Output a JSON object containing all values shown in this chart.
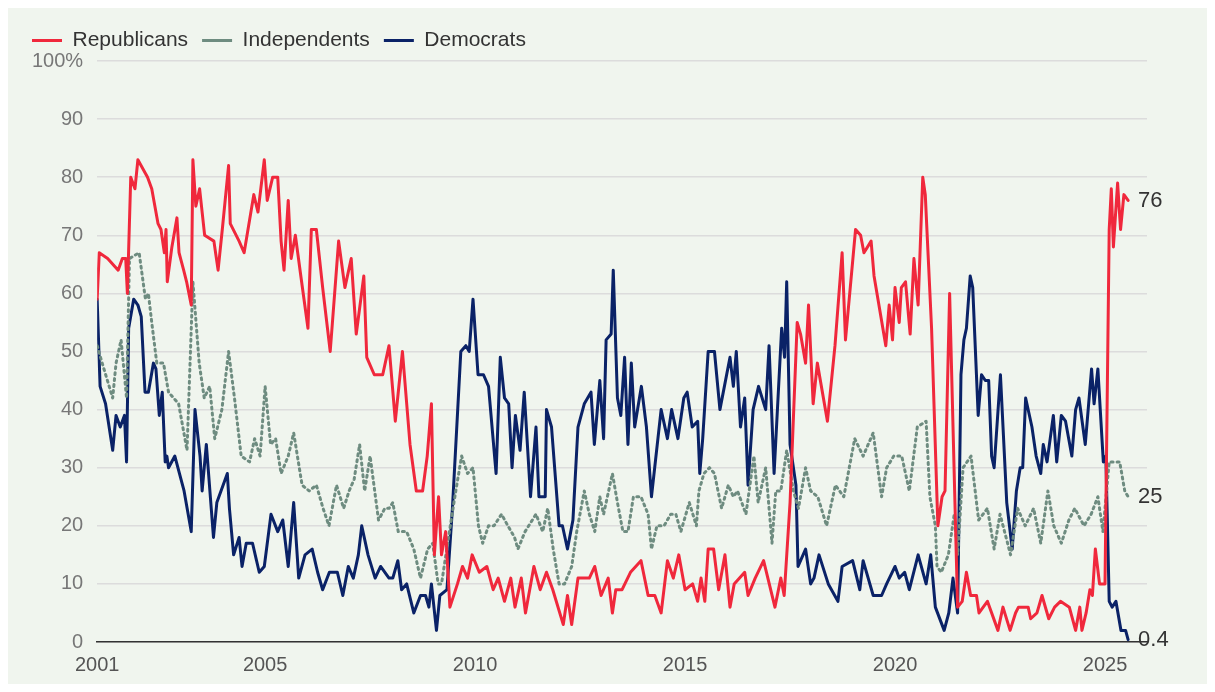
{
  "chart_data": {
    "type": "line",
    "legend": "top left",
    "grid": "y",
    "marker": "none",
    "xlim": [
      2001,
      2026
    ],
    "xticks": [
      2001,
      2005,
      2010,
      2015,
      2020,
      2025
    ],
    "ylim": [
      0,
      100
    ],
    "yticks": [
      0,
      10,
      20,
      30,
      40,
      50,
      60,
      70,
      80,
      90,
      {
        "value": 100,
        "label": "100%"
      }
    ],
    "series": [
      {
        "name": "Republicans",
        "color": "#f0283c",
        "line_style": "solid",
        "x": [
          2001.0,
          2001.05,
          2001.25,
          2001.5,
          2001.6,
          2001.68,
          2001.72,
          2001.8,
          2001.9,
          2001.97,
          2002.2,
          2002.3,
          2002.45,
          2002.52,
          2002.6,
          2002.64,
          2002.67,
          2002.78,
          2002.9,
          2002.95,
          2003.06,
          2003.13,
          2003.24,
          2003.28,
          2003.35,
          2003.44,
          2003.56,
          2003.78,
          2003.88,
          2003.98,
          2004.13,
          2004.17,
          2004.38,
          2004.5,
          2004.73,
          2004.83,
          2004.98,
          2005.05,
          2005.18,
          2005.3,
          2005.38,
          2005.45,
          2005.55,
          2005.62,
          2005.72,
          2005.85,
          2006.02,
          2006.1,
          2006.22,
          2006.37,
          2006.55,
          2006.75,
          2006.9,
          2007.05,
          2007.17,
          2007.35,
          2007.42,
          2007.6,
          2007.8,
          2007.95,
          2008.1,
          2008.27,
          2008.45,
          2008.6,
          2008.75,
          2008.86,
          2008.96,
          2009.03,
          2009.13,
          2009.2,
          2009.3,
          2009.4,
          2009.58,
          2009.7,
          2009.82,
          2009.93,
          2010.1,
          2010.28,
          2010.43,
          2010.55,
          2010.7,
          2010.85,
          2010.95,
          2011.1,
          2011.2,
          2011.4,
          2011.55,
          2011.7,
          2011.85,
          2012.1,
          2012.2,
          2012.3,
          2012.45,
          2012.72,
          2012.85,
          2013.0,
          2013.17,
          2013.27,
          2013.35,
          2013.5,
          2013.7,
          2013.95,
          2014.12,
          2014.28,
          2014.43,
          2014.58,
          2014.72,
          2014.85,
          2015.0,
          2015.18,
          2015.3,
          2015.38,
          2015.47,
          2015.55,
          2015.68,
          2015.8,
          2015.95,
          2016.07,
          2016.17,
          2016.42,
          2016.5,
          2016.67,
          2016.87,
          2017.14,
          2017.28,
          2017.36,
          2017.5,
          2017.67,
          2017.75,
          2017.87,
          2017.94,
          2018.05,
          2018.15,
          2018.39,
          2018.57,
          2018.74,
          2018.82,
          2019.06,
          2019.18,
          2019.26,
          2019.43,
          2019.5,
          2019.78,
          2019.86,
          2019.94,
          2020.0,
          2020.1,
          2020.15,
          2020.25,
          2020.36,
          2020.45,
          2020.55,
          2020.66,
          2020.72,
          2020.87,
          2021.02,
          2021.12,
          2021.19,
          2021.3,
          2021.49,
          2021.6,
          2021.7,
          2021.8,
          2021.94,
          2022.0,
          2022.2,
          2022.45,
          2022.57,
          2022.74,
          2022.87,
          2022.94,
          2022.98,
          2023.17,
          2023.23,
          2023.38,
          2023.5,
          2023.66,
          2023.8,
          2023.94,
          2024.15,
          2024.3,
          2024.4,
          2024.45,
          2024.55,
          2024.64,
          2024.7,
          2024.77,
          2024.87,
          2025.0,
          2025.1,
          2025.15,
          2025.2,
          2025.3,
          2025.37,
          2025.45,
          2025.55
        ],
        "values": [
          59,
          67,
          66,
          64,
          66,
          66,
          60,
          80,
          78,
          83,
          80,
          78,
          72,
          71,
          67,
          71,
          62,
          68,
          73,
          67,
          64,
          62,
          58,
          83,
          75,
          78,
          70,
          69,
          64,
          71,
          82,
          72,
          69,
          67,
          77,
          74,
          83,
          76,
          80,
          80,
          69,
          64,
          76,
          66,
          70,
          63,
          54,
          71,
          71,
          61,
          50,
          69,
          61,
          66,
          53,
          63,
          49,
          46,
          46,
          51,
          38,
          50,
          34,
          26,
          26,
          32,
          41,
          15,
          25,
          15,
          19,
          6,
          10,
          13,
          11,
          15,
          12,
          13,
          9,
          11,
          7,
          11,
          6,
          11,
          5,
          13,
          9,
          12,
          9,
          3,
          8,
          3,
          11,
          11,
          13,
          8,
          11,
          5,
          9,
          9,
          12,
          14,
          8,
          8,
          5,
          14,
          11,
          15,
          9,
          10,
          7,
          11,
          7,
          16,
          16,
          9,
          15,
          6,
          10,
          12,
          8,
          11,
          14,
          6,
          11,
          8,
          24,
          55,
          53,
          48,
          58,
          41,
          48,
          38,
          51,
          67,
          52,
          71,
          70,
          67,
          69,
          63,
          51,
          58,
          52,
          61,
          55,
          61,
          62,
          53,
          66,
          58,
          80,
          77,
          54,
          20,
          25,
          26,
          60,
          6,
          7,
          12,
          8,
          8,
          5,
          7,
          2,
          6,
          2,
          5,
          6,
          6,
          6,
          4,
          5,
          8,
          4,
          6,
          7,
          6,
          2,
          6,
          2,
          5,
          9,
          8,
          16,
          10,
          10,
          71,
          78,
          68,
          79,
          71,
          77,
          76
        ],
        "value_labels": [
          null,
          null,
          null,
          null,
          null,
          null,
          null,
          null,
          null,
          null,
          null,
          null,
          null,
          null,
          null,
          null,
          null,
          null,
          null,
          null,
          null,
          null,
          null,
          null,
          null,
          null,
          null,
          null,
          null,
          null,
          null,
          null,
          null,
          null,
          null,
          null,
          null,
          null,
          null,
          null,
          null,
          null,
          null,
          null,
          null,
          null,
          null,
          null,
          null,
          null,
          null,
          null,
          null,
          null,
          null,
          null,
          null,
          null,
          null,
          null,
          null,
          null,
          null,
          null,
          null,
          null,
          null,
          null,
          null,
          null,
          null,
          null,
          null,
          null,
          null,
          null,
          null,
          null,
          null,
          null,
          null,
          null,
          null,
          null,
          null,
          null,
          null,
          null,
          null,
          null,
          null,
          null,
          null,
          null,
          null,
          null,
          null,
          null,
          null,
          null,
          null,
          null,
          null,
          null,
          null,
          null,
          null,
          null,
          null,
          null,
          null,
          null,
          null,
          null,
          null,
          null,
          null,
          null,
          null,
          null,
          null,
          null,
          null,
          null,
          null,
          null,
          null,
          null,
          null,
          null,
          null,
          null,
          null,
          null,
          null,
          null,
          null,
          null,
          null,
          null,
          null,
          null,
          null,
          null,
          null,
          null,
          null,
          null,
          null,
          null,
          null,
          null,
          null,
          null,
          null,
          null,
          null,
          null,
          null,
          null,
          null,
          null,
          null,
          null,
          null,
          null,
          null,
          null,
          null,
          null,
          null,
          null,
          null,
          null,
          null,
          null,
          null,
          null,
          null,
          null,
          null,
          null,
          null,
          null,
          null,
          null,
          null,
          null,
          null,
          null,
          null,
          null,
          null,
          null,
          null,
          "76"
        ]
      },
      {
        "name": "Independents",
        "color": "#6e8c80",
        "line_style": "dotted",
        "x": [
          2001.0,
          2001.12,
          2001.37,
          2001.45,
          2001.57,
          2001.7,
          2001.77,
          2002.0,
          2002.15,
          2002.22,
          2002.3,
          2002.42,
          2002.58,
          2002.7,
          2002.94,
          2003.14,
          2003.28,
          2003.43,
          2003.55,
          2003.68,
          2003.8,
          2003.97,
          2004.13,
          2004.27,
          2004.43,
          2004.63,
          2004.75,
          2004.88,
          2005.0,
          2005.13,
          2005.25,
          2005.38,
          2005.55,
          2005.68,
          2005.88,
          2006.05,
          2006.22,
          2006.38,
          2006.52,
          2006.7,
          2006.87,
          2007.0,
          2007.12,
          2007.25,
          2007.37,
          2007.5,
          2007.7,
          2007.85,
          2007.95,
          2008.04,
          2008.17,
          2008.37,
          2008.54,
          2008.7,
          2008.87,
          2008.99,
          2009.12,
          2009.2,
          2009.41,
          2009.54,
          2009.68,
          2009.82,
          2009.95,
          2010.08,
          2010.18,
          2010.32,
          2010.45,
          2010.63,
          2010.78,
          2010.94,
          2011.02,
          2011.19,
          2011.45,
          2011.61,
          2011.73,
          2011.86,
          2012.0,
          2012.13,
          2012.3,
          2012.42,
          2012.6,
          2012.72,
          2012.85,
          2012.97,
          2013.06,
          2013.27,
          2013.39,
          2013.52,
          2013.64,
          2013.77,
          2013.95,
          2014.12,
          2014.2,
          2014.33,
          2014.5,
          2014.66,
          2014.78,
          2014.9,
          2015.1,
          2015.27,
          2015.33,
          2015.45,
          2015.58,
          2015.7,
          2015.87,
          2016.03,
          2016.15,
          2016.25,
          2016.45,
          2016.64,
          2016.74,
          2016.92,
          2017.07,
          2017.16,
          2017.28,
          2017.42,
          2017.58,
          2017.7,
          2017.87,
          2017.99,
          2018.16,
          2018.37,
          2018.58,
          2018.78,
          2019.04,
          2019.24,
          2019.48,
          2019.68,
          2019.8,
          2019.97,
          2020.16,
          2020.34,
          2020.53,
          2020.74,
          2020.83,
          2020.96,
          2021.0,
          2021.1,
          2021.27,
          2021.41,
          2021.49,
          2021.62,
          2021.81,
          2021.99,
          2022.2,
          2022.36,
          2022.5,
          2022.68,
          2022.75,
          2022.92,
          2023.1,
          2023.3,
          2023.47,
          2023.64,
          2023.78,
          2023.96,
          2024.14,
          2024.28,
          2024.5,
          2024.67,
          2024.83,
          2024.95,
          2025.1,
          2025.28,
          2025.35,
          2025.47,
          2025.55
        ],
        "values": [
          51,
          48,
          42,
          48,
          52,
          42,
          66,
          67,
          59,
          60,
          55,
          48,
          48,
          43,
          41,
          33,
          62,
          48,
          42,
          44,
          35,
          40,
          50,
          42,
          32,
          31,
          35,
          32,
          44,
          34,
          35,
          29,
          32,
          36,
          27,
          26,
          27,
          23,
          20,
          27,
          23,
          26,
          28,
          34,
          26,
          32,
          21,
          23,
          23,
          24,
          19,
          19,
          16,
          11,
          16,
          17,
          10,
          10,
          20,
          26,
          32,
          29,
          30,
          20,
          17,
          20,
          20,
          22,
          20,
          18,
          16,
          19,
          22,
          19,
          23,
          16,
          10,
          10,
          13,
          19,
          26,
          22,
          19,
          25,
          22,
          29,
          24,
          19,
          19,
          25,
          25,
          22,
          16,
          20,
          20,
          22,
          22,
          19,
          24,
          20,
          26,
          29,
          30,
          29,
          23,
          27,
          25,
          26,
          22,
          32,
          24,
          30,
          17,
          26,
          26,
          33,
          26,
          23,
          30,
          26,
          25,
          20,
          27,
          25,
          35,
          32,
          36,
          25,
          30,
          32,
          32,
          26,
          37,
          38,
          25,
          20,
          13,
          12,
          15,
          22,
          15,
          30,
          32,
          21,
          23,
          16,
          22,
          17,
          15,
          23,
          20,
          23,
          17,
          26,
          20,
          17,
          21,
          23,
          20,
          22,
          25,
          19,
          31,
          31,
          31,
          26,
          25
        ],
        "value_labels": [
          null,
          null,
          null,
          null,
          null,
          null,
          null,
          null,
          null,
          null,
          null,
          null,
          null,
          null,
          null,
          null,
          null,
          null,
          null,
          null,
          null,
          null,
          null,
          null,
          null,
          null,
          null,
          null,
          null,
          null,
          null,
          null,
          null,
          null,
          null,
          null,
          null,
          null,
          null,
          null,
          null,
          null,
          null,
          null,
          null,
          null,
          null,
          null,
          null,
          null,
          null,
          null,
          null,
          null,
          null,
          null,
          null,
          null,
          null,
          null,
          null,
          null,
          null,
          null,
          null,
          null,
          null,
          null,
          null,
          null,
          null,
          null,
          null,
          null,
          null,
          null,
          null,
          null,
          null,
          null,
          null,
          null,
          null,
          null,
          null,
          null,
          null,
          null,
          null,
          null,
          null,
          null,
          null,
          null,
          null,
          null,
          null,
          null,
          null,
          null,
          null,
          null,
          null,
          null,
          null,
          null,
          null,
          null,
          null,
          null,
          null,
          null,
          null,
          null,
          null,
          null,
          null,
          null,
          null,
          null,
          null,
          null,
          null,
          null,
          null,
          null,
          null,
          null,
          null,
          null,
          null,
          null,
          null,
          null,
          null,
          null,
          null,
          null,
          null,
          null,
          null,
          null,
          null,
          null,
          null,
          null,
          null,
          null,
          null,
          null,
          null,
          null,
          null,
          null,
          null,
          null,
          null,
          null,
          null,
          null,
          null,
          null,
          null,
          null,
          null,
          null,
          "25"
        ]
      },
      {
        "name": "Democrats",
        "color": "#0a2267",
        "line_style": "solid",
        "x": [
          2001.0,
          2001.07,
          2001.2,
          2001.37,
          2001.45,
          2001.55,
          2001.65,
          2001.7,
          2001.75,
          2001.87,
          2001.97,
          2002.05,
          2002.14,
          2002.22,
          2002.34,
          2002.4,
          2002.48,
          2002.55,
          2002.62,
          2002.66,
          2002.7,
          2002.85,
          2003.07,
          2003.24,
          2003.33,
          2003.45,
          2003.5,
          2003.6,
          2003.77,
          2003.85,
          2004.1,
          2004.15,
          2004.25,
          2004.38,
          2004.45,
          2004.55,
          2004.7,
          2004.86,
          2004.98,
          2005.14,
          2005.3,
          2005.42,
          2005.55,
          2005.68,
          2005.8,
          2005.95,
          2006.12,
          2006.25,
          2006.37,
          2006.53,
          2006.72,
          2006.85,
          2006.98,
          2007.1,
          2007.22,
          2007.3,
          2007.45,
          2007.62,
          2007.75,
          2007.95,
          2008.04,
          2008.16,
          2008.25,
          2008.37,
          2008.54,
          2008.7,
          2008.82,
          2008.9,
          2008.96,
          2009.08,
          2009.16,
          2009.33,
          2009.46,
          2009.66,
          2009.78,
          2009.86,
          2009.95,
          2010.07,
          2010.2,
          2010.32,
          2010.5,
          2010.6,
          2010.7,
          2010.8,
          2010.88,
          2010.96,
          2011.07,
          2011.17,
          2011.32,
          2011.45,
          2011.52,
          2011.67,
          2011.7,
          2011.82,
          2012.0,
          2012.08,
          2012.2,
          2012.33,
          2012.45,
          2012.6,
          2012.76,
          2012.84,
          2012.97,
          2013.06,
          2013.12,
          2013.24,
          2013.29,
          2013.39,
          2013.47,
          2013.56,
          2013.64,
          2013.72,
          2013.8,
          2013.96,
          2014.08,
          2014.2,
          2014.43,
          2014.58,
          2014.68,
          2014.83,
          2014.97,
          2015.05,
          2015.17,
          2015.3,
          2015.35,
          2015.42,
          2015.55,
          2015.7,
          2015.83,
          2016.07,
          2016.15,
          2016.22,
          2016.32,
          2016.42,
          2016.5,
          2016.62,
          2016.75,
          2016.92,
          2017.0,
          2017.12,
          2017.3,
          2017.37,
          2017.42,
          2017.5,
          2017.64,
          2017.69,
          2017.87,
          2017.99,
          2018.07,
          2018.19,
          2018.41,
          2018.64,
          2018.74,
          2018.99,
          2019.16,
          2019.24,
          2019.48,
          2019.68,
          2019.8,
          2020.0,
          2020.1,
          2020.23,
          2020.34,
          2020.55,
          2020.74,
          2020.85,
          2020.96,
          2021.17,
          2021.28,
          2021.38,
          2021.49,
          2021.57,
          2021.64,
          2021.7,
          2021.79,
          2021.85,
          2021.98,
          2022.06,
          2022.15,
          2022.23,
          2022.3,
          2022.36,
          2022.51,
          2022.66,
          2022.79,
          2022.89,
          2022.98,
          2023.04,
          2023.11,
          2023.26,
          2023.36,
          2023.47,
          2023.53,
          2023.62,
          2023.77,
          2023.85,
          2023.96,
          2024.06,
          2024.21,
          2024.3,
          2024.38,
          2024.53,
          2024.68,
          2024.74,
          2024.83,
          2024.96,
          2025.02,
          2025.1,
          2025.17,
          2025.26,
          2025.38,
          2025.49,
          2025.55
        ],
        "values": [
          59,
          44,
          41,
          33,
          39,
          37,
          39,
          31,
          54,
          59,
          58,
          56,
          43,
          43,
          48,
          47,
          39,
          43,
          31,
          32,
          30,
          32,
          26,
          19,
          40,
          32,
          26,
          34,
          18,
          24,
          29,
          23,
          15,
          18,
          13,
          17,
          17,
          12,
          13,
          22,
          19,
          21,
          13,
          24,
          11,
          15,
          16,
          12,
          9,
          12,
          12,
          8,
          13,
          11,
          15,
          20,
          15,
          11,
          13,
          11,
          11,
          14,
          9,
          10,
          5,
          8,
          8,
          6,
          10,
          2,
          8,
          9,
          23,
          50,
          51,
          50,
          59,
          46,
          46,
          44,
          29,
          49,
          42,
          41,
          30,
          39,
          33,
          43,
          25,
          37,
          25,
          25,
          40,
          37,
          20,
          20,
          16,
          21,
          37,
          41,
          43,
          34,
          45,
          35,
          52,
          53,
          64,
          42,
          39,
          49,
          34,
          48,
          37,
          44,
          37,
          25,
          40,
          35,
          40,
          35,
          42,
          43,
          37,
          38,
          29,
          35,
          50,
          50,
          40,
          49,
          44,
          50,
          37,
          42,
          27,
          40,
          44,
          40,
          51,
          29,
          54,
          49,
          62,
          34,
          27,
          13,
          16,
          10,
          11,
          15,
          10,
          7,
          13,
          14,
          9,
          14,
          8,
          8,
          10,
          13,
          11,
          12,
          9,
          15,
          10,
          15,
          6,
          2,
          5,
          11,
          5,
          46,
          52,
          54,
          63,
          61,
          39,
          46,
          45,
          45,
          32,
          30,
          46,
          24,
          16,
          26,
          30,
          30,
          42,
          37,
          32,
          29,
          34,
          31,
          39,
          31,
          39,
          38,
          32,
          40,
          42,
          34,
          47,
          41,
          47,
          31,
          32,
          7,
          6,
          7,
          2,
          2,
          0.4
        ],
        "value_labels": [
          null,
          null,
          null,
          null,
          null,
          null,
          null,
          null,
          null,
          null,
          null,
          null,
          null,
          null,
          null,
          null,
          null,
          null,
          null,
          null,
          null,
          null,
          null,
          null,
          null,
          null,
          null,
          null,
          null,
          null,
          null,
          null,
          null,
          null,
          null,
          null,
          null,
          null,
          null,
          null,
          null,
          null,
          null,
          null,
          null,
          null,
          null,
          null,
          null,
          null,
          null,
          null,
          null,
          null,
          null,
          null,
          null,
          null,
          null,
          null,
          null,
          null,
          null,
          null,
          null,
          null,
          null,
          null,
          null,
          null,
          null,
          null,
          null,
          null,
          null,
          null,
          null,
          null,
          null,
          null,
          null,
          null,
          null,
          null,
          null,
          null,
          null,
          null,
          null,
          null,
          null,
          null,
          null,
          null,
          null,
          null,
          null,
          null,
          null,
          null,
          null,
          null,
          null,
          null,
          null,
          null,
          null,
          null,
          null,
          null,
          null,
          null,
          null,
          null,
          null,
          null,
          null,
          null,
          null,
          null,
          null,
          null,
          null,
          null,
          null,
          null,
          null,
          null,
          null,
          null,
          null,
          null,
          null,
          null,
          null,
          null,
          null,
          null,
          null,
          null,
          null,
          null,
          null,
          null,
          null,
          null,
          null,
          null,
          null,
          null,
          null,
          null,
          null,
          null,
          null,
          null,
          null,
          null,
          null,
          null,
          null,
          null,
          null,
          null,
          null,
          null,
          null,
          null,
          null,
          null,
          null,
          null,
          null,
          null,
          null,
          null,
          null,
          null,
          null,
          null,
          null,
          null,
          null,
          null,
          null,
          null,
          null,
          null,
          null,
          null,
          null,
          null,
          null,
          null,
          null,
          null,
          null,
          null,
          null,
          null,
          null,
          null,
          null,
          null,
          null,
          null,
          null,
          null,
          null,
          null,
          null,
          null,
          "0.4"
        ]
      }
    ]
  }
}
